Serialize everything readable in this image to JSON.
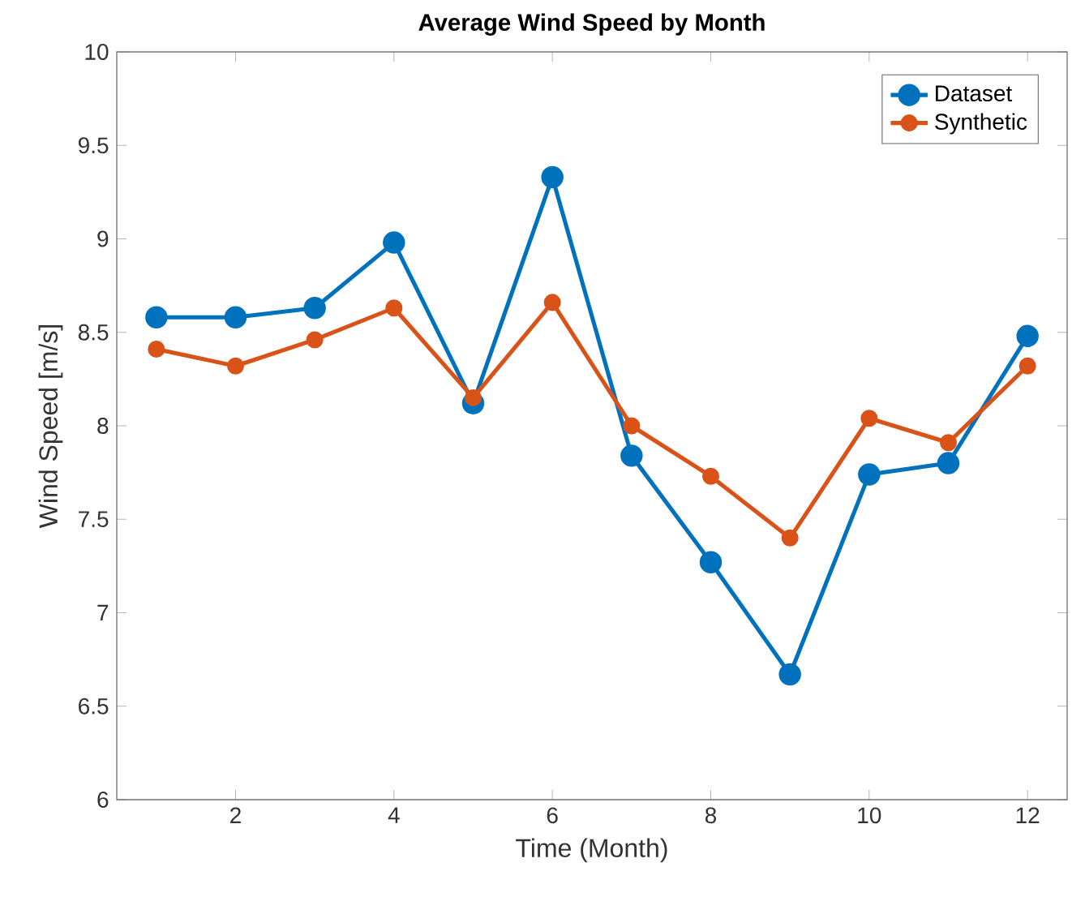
{
  "chart_data": {
    "type": "line",
    "title": "Average Wind Speed by Month",
    "xlabel": "Time (Month)",
    "ylabel": "Wind Speed [m/s]",
    "x": [
      1,
      2,
      3,
      4,
      5,
      6,
      7,
      8,
      9,
      10,
      11,
      12
    ],
    "series": [
      {
        "name": "Dataset",
        "color": "#0072bd",
        "values": [
          8.58,
          8.58,
          8.63,
          8.98,
          8.12,
          9.33,
          7.84,
          7.27,
          6.67,
          7.74,
          7.8,
          8.48
        ]
      },
      {
        "name": "Synthetic",
        "color": "#d95319",
        "values": [
          8.41,
          8.32,
          8.46,
          8.63,
          8.15,
          8.66,
          8.0,
          7.73,
          7.4,
          8.04,
          7.91,
          8.32
        ]
      }
    ],
    "xlim": [
      0.5,
      12.5
    ],
    "ylim": [
      6,
      10
    ],
    "xticks": [
      2,
      4,
      6,
      8,
      10,
      12
    ],
    "yticks": [
      6,
      6.5,
      7,
      7.5,
      8,
      8.5,
      9,
      9.5,
      10
    ],
    "grid": false,
    "legend": "top right",
    "marker": "circle",
    "line_style": "solid"
  }
}
